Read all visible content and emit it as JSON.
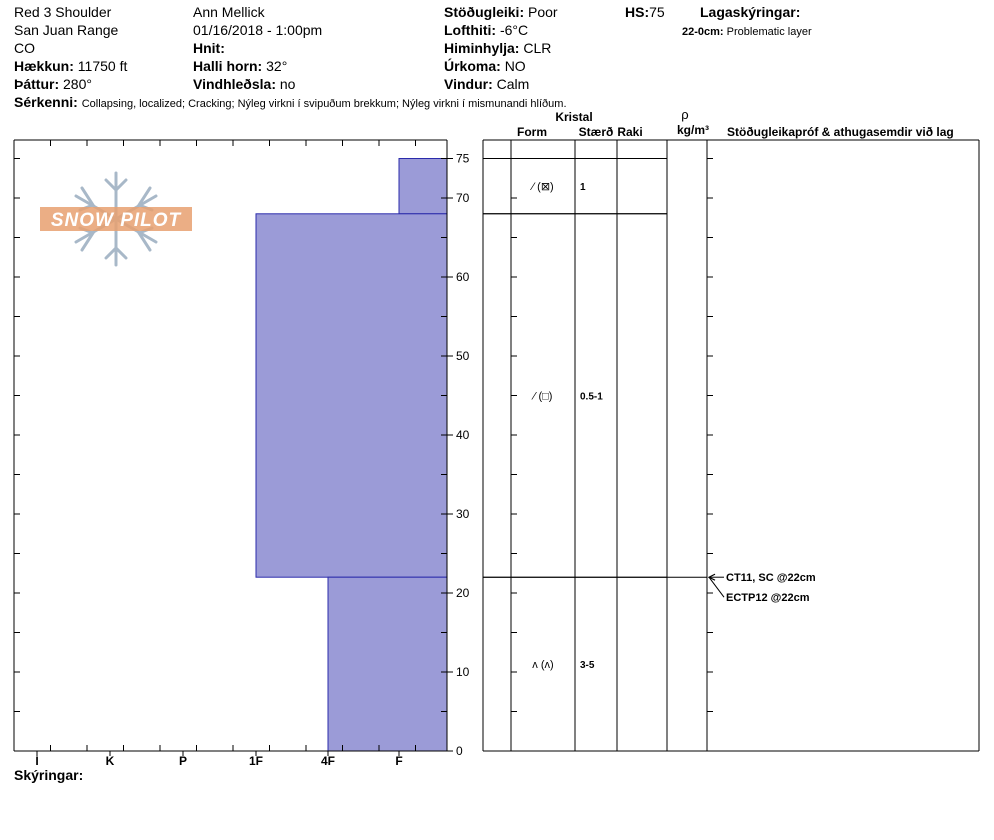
{
  "header": {
    "location": "Red 3 Shoulder",
    "range": "San Juan Range",
    "state": "CO",
    "elevation_label": "Hækkun:",
    "elevation_value": "11750 ft",
    "aspect_label": "Þáttur:",
    "aspect_value": "280°",
    "observer": "Ann Mellick",
    "datetime": "01/16/2018 - 1:00pm",
    "coords_label": "Hnit:",
    "slope_label": "Halli horn:",
    "slope_value": "32°",
    "wind_loading_label": "Vindhleðsla:",
    "wind_loading_value": "no",
    "stability_label": "Stöðugleiki:",
    "stability_value": "Poor",
    "air_temp_label": "Lofthiti:",
    "air_temp_value": "-6°C",
    "sky_label": "Himinhylja:",
    "sky_value": "CLR",
    "precip_label": "Úrkoma:",
    "precip_value": "NO",
    "wind_label": "Vindur:",
    "wind_value": "Calm",
    "hs_label": "HS:",
    "hs_value": "75",
    "layer_notes_title": "Lagaskýringar:",
    "layer_note_range": "22-0cm:",
    "layer_note_text": "Problematic layer",
    "features_label": "Sérkenni:",
    "features_value": "Collapsing, localized;  Cracking;  Nýleg virkni í svipuðum brekkum;  Nýleg virkni í mismunandi hlíðum."
  },
  "logo": {
    "text": "SNOW PILOT"
  },
  "columns": {
    "crystal": "Kristal",
    "form": "Form",
    "size": "Stærð",
    "moisture": "Raki",
    "density_symbol": "ρ",
    "density_unit": "kg/m³",
    "comments": "Stöðugleikapróf & athugasemdir við lag"
  },
  "footer": {
    "notes_label": "Skýringar:"
  },
  "layer_rows": [
    {
      "form": "⁄ (⊠)",
      "size": "1"
    },
    {
      "form": "⁄ (□)",
      "size": "0.5-1"
    },
    {
      "form": "ʌ (ʌ)",
      "size": "3-5"
    }
  ],
  "tests": [
    {
      "text": "CT11, SC @22cm",
      "depth": 22
    },
    {
      "text": "ECTP12 @22cm",
      "depth": 22
    }
  ],
  "colors": {
    "layer_fill": "#9b9bd7",
    "layer_stroke": "#2b2bab",
    "logo_orange": "#e8a070",
    "logo_blue": "#a8b8c8"
  },
  "chart_data": {
    "type": "bar",
    "title": "",
    "y_axis": {
      "label": "",
      "unit": "cm",
      "min": 0,
      "max": 75,
      "ticks": [
        0,
        10,
        20,
        30,
        40,
        50,
        60,
        70,
        75
      ]
    },
    "x_axis": {
      "label": "",
      "ticks": [
        "I",
        "K",
        "P",
        "1F",
        "4F",
        "F"
      ]
    },
    "hardness_scale": {
      "F": 1,
      "4F": 2,
      "1F": 3,
      "P": 4,
      "K": 5,
      "I": 6
    },
    "layers": [
      {
        "top": 75,
        "bottom": 68,
        "hardness": "F"
      },
      {
        "top": 68,
        "bottom": 22,
        "hardness": "1F"
      },
      {
        "top": 22,
        "bottom": 0,
        "hardness": "4F"
      }
    ]
  }
}
